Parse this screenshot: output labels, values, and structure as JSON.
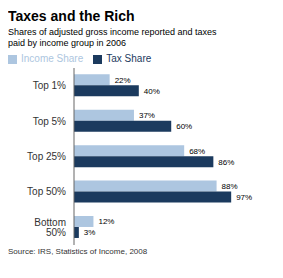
{
  "chart_data": {
    "type": "bar",
    "orientation": "horizontal",
    "title": "Taxes and the Rich",
    "subtitle": "Shares of adjusted gross income reported and taxes\npaid by income group in 2006",
    "source": "Source: IRS, Statistics of Income, 2008",
    "categories": [
      "Top 1%",
      "Top 5%",
      "Top 25%",
      "Top 50%",
      "Bottom 50%"
    ],
    "series": [
      {
        "name": "Income Share",
        "color": "#adc6e0",
        "values": [
          22,
          37,
          68,
          88,
          12
        ],
        "value_labels": [
          "22%",
          "37%",
          "68%",
          "88%",
          "12%"
        ]
      },
      {
        "name": "Tax Share",
        "color": "#1b3a5e",
        "values": [
          40,
          60,
          86,
          97,
          3
        ],
        "value_labels": [
          "40%",
          "60%",
          "86%",
          "97%",
          "3%"
        ]
      }
    ],
    "xlim": [
      0,
      108
    ],
    "grid": false,
    "legend": "upper left",
    "data_labels": true,
    "tick_labels": "y"
  }
}
